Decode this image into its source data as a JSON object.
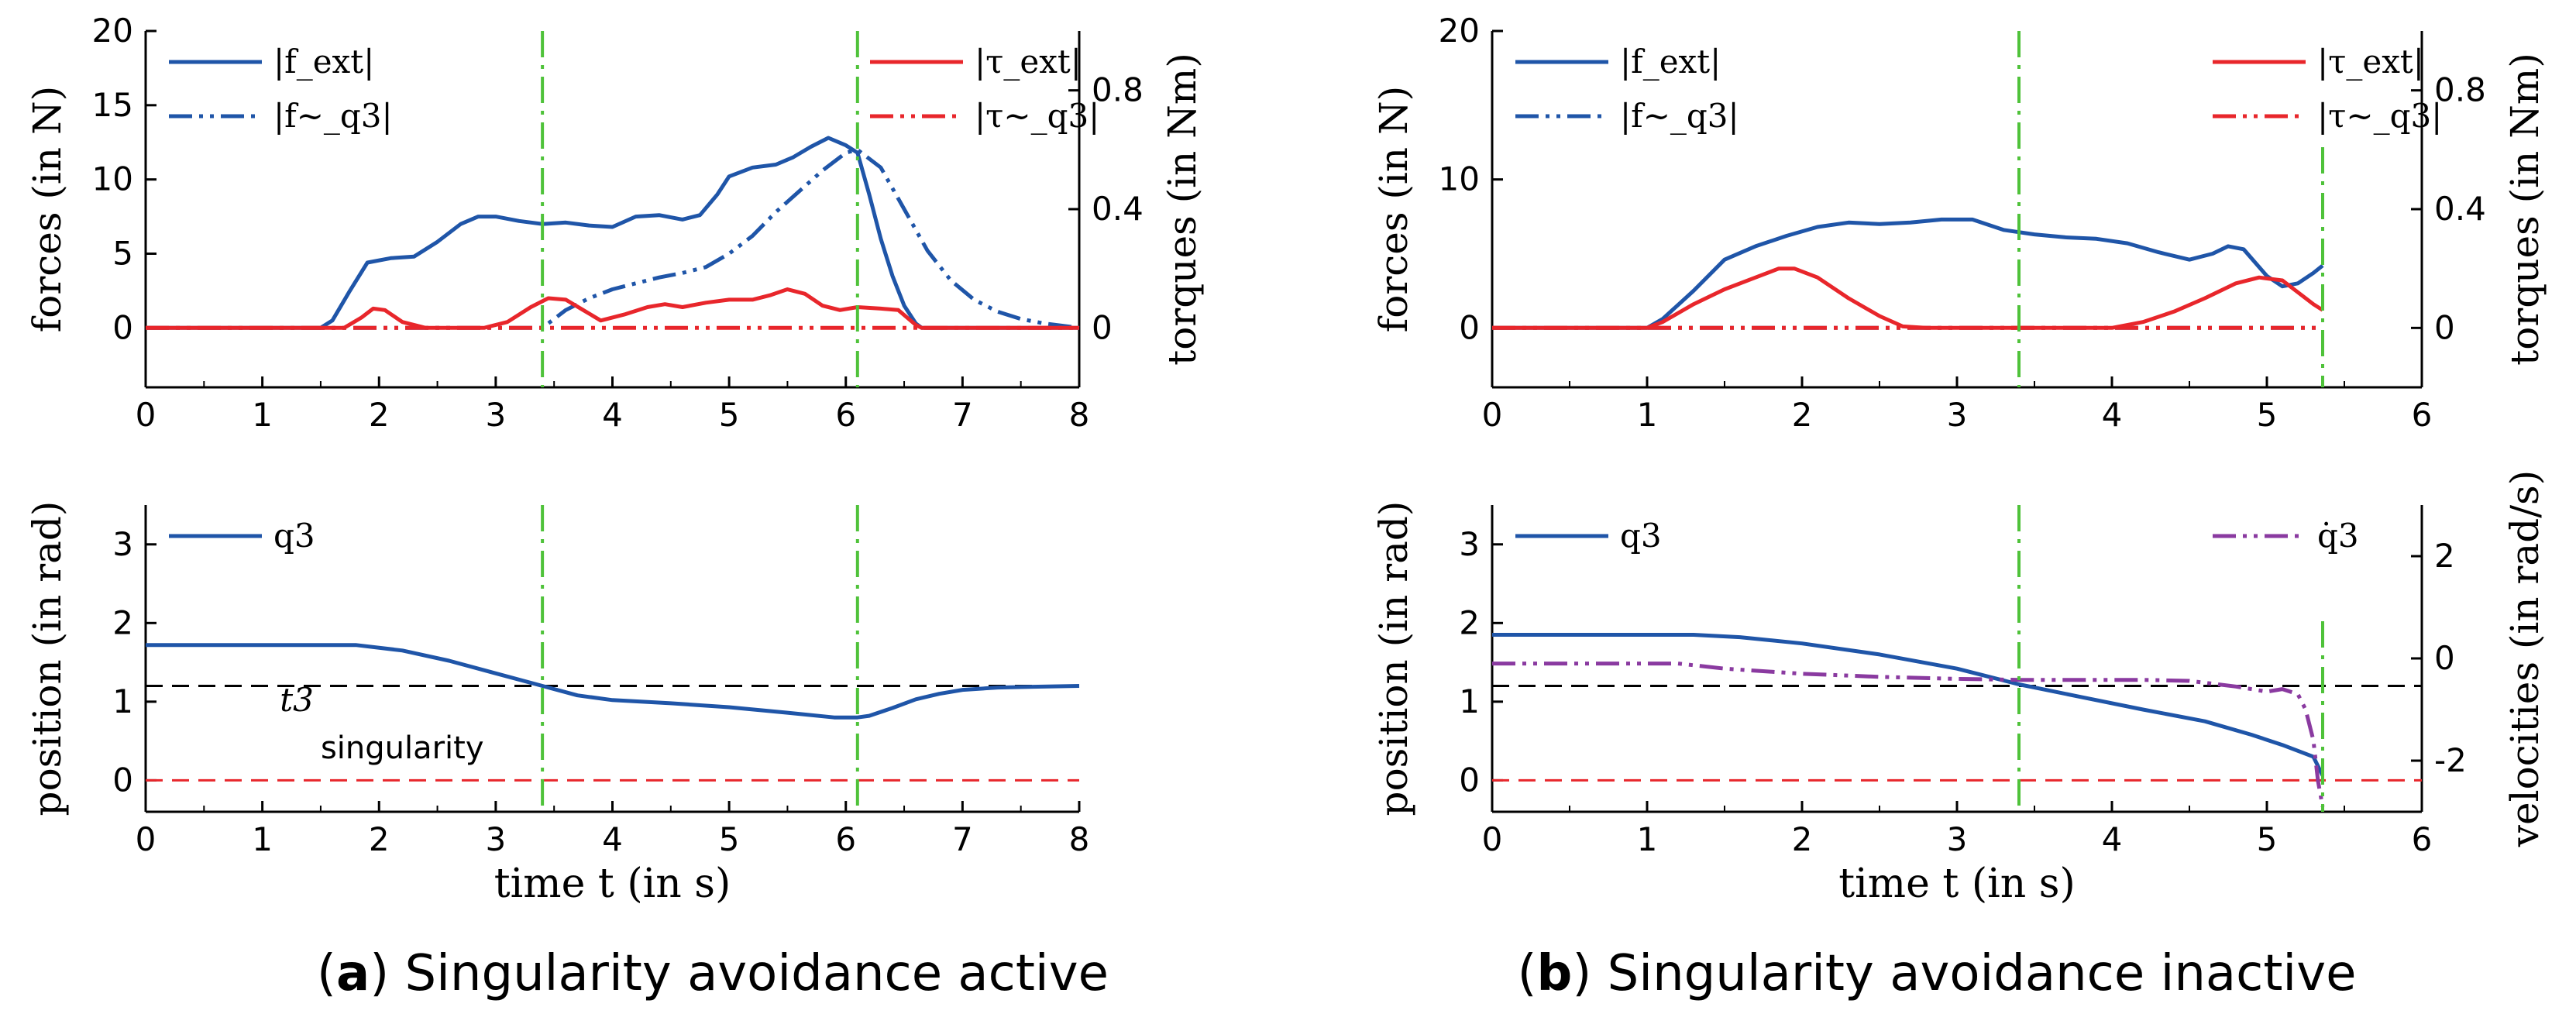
{
  "colors": {
    "blue": "#1f55a8",
    "red": "#e8262b",
    "green": "#4fc23a",
    "black": "#000000",
    "purple": "#8a3aa0"
  },
  "captions": [
    {
      "letter": "a",
      "text": "Singularity avoidance active"
    },
    {
      "letter": "b",
      "text": "Singularity avoidance inactive"
    }
  ],
  "chart_data": [
    {
      "id": "a-forces",
      "type": "line",
      "ylabel": "forces (in N)",
      "ylabel_right": "torques (in Nm)",
      "xlim": [
        0,
        8
      ],
      "xticks": [
        0,
        1,
        2,
        3,
        4,
        5,
        6,
        7,
        8
      ],
      "ylim": [
        -4,
        20
      ],
      "yticks": [
        0,
        5,
        10,
        15,
        20
      ],
      "ylim_right": [
        -0.2,
        1.0
      ],
      "yticks_right": [
        0,
        0.4,
        0.8
      ],
      "vlines": [
        3.4,
        6.1
      ],
      "legend_left": [
        "|f_ext|",
        "|f~_q3|"
      ],
      "legend_right": [
        "|τ_ext|",
        "|τ~_q3|"
      ],
      "series": [
        {
          "name": "|f_ext|",
          "axis": "left",
          "style": "solid",
          "color": "blue",
          "x": [
            0,
            1.5,
            1.6,
            1.75,
            1.9,
            2.1,
            2.3,
            2.5,
            2.7,
            2.85,
            3.0,
            3.2,
            3.4,
            3.6,
            3.8,
            4.0,
            4.2,
            4.4,
            4.6,
            4.75,
            4.9,
            5.0,
            5.2,
            5.4,
            5.55,
            5.7,
            5.85,
            6.0,
            6.1,
            6.2,
            6.3,
            6.4,
            6.5,
            6.6,
            6.65,
            8
          ],
          "y": [
            0,
            0,
            0.5,
            2.5,
            4.4,
            4.7,
            4.8,
            5.8,
            7.0,
            7.5,
            7.5,
            7.2,
            7.0,
            7.1,
            6.9,
            6.8,
            7.5,
            7.6,
            7.3,
            7.6,
            9.0,
            10.2,
            10.8,
            11.0,
            11.5,
            12.2,
            12.8,
            12.3,
            11.8,
            9.0,
            6.0,
            3.5,
            1.5,
            0.3,
            0,
            0
          ]
        },
        {
          "name": "|f~_q3|",
          "axis": "left",
          "style": "dashdotdot",
          "color": "blue",
          "x": [
            0,
            3.4,
            3.6,
            3.8,
            4.0,
            4.2,
            4.4,
            4.6,
            4.8,
            5.0,
            5.2,
            5.4,
            5.6,
            5.8,
            6.0,
            6.1,
            6.3,
            6.5,
            6.7,
            6.9,
            7.1,
            7.3,
            7.5,
            7.7,
            7.9,
            8
          ],
          "y": [
            0,
            0,
            1.2,
            2.0,
            2.6,
            3.0,
            3.4,
            3.7,
            4.1,
            5.0,
            6.2,
            7.8,
            9.2,
            10.6,
            11.8,
            12.0,
            10.8,
            8.0,
            5.2,
            3.2,
            1.9,
            1.1,
            0.6,
            0.3,
            0.1,
            0
          ]
        },
        {
          "name": "|τ_ext|",
          "axis": "right",
          "style": "solid",
          "color": "red",
          "x": [
            0,
            1.7,
            1.85,
            1.95,
            2.05,
            2.2,
            2.4,
            2.9,
            3.1,
            3.3,
            3.45,
            3.6,
            3.75,
            3.9,
            4.1,
            4.3,
            4.45,
            4.6,
            4.8,
            5.0,
            5.2,
            5.35,
            5.5,
            5.65,
            5.8,
            5.95,
            6.1,
            6.3,
            6.45,
            6.6,
            6.65,
            8
          ],
          "y": [
            0,
            0,
            0.035,
            0.065,
            0.06,
            0.02,
            0,
            0,
            0.02,
            0.07,
            0.1,
            0.095,
            0.06,
            0.025,
            0.045,
            0.07,
            0.08,
            0.07,
            0.085,
            0.095,
            0.095,
            0.11,
            0.13,
            0.115,
            0.075,
            0.06,
            0.07,
            0.065,
            0.06,
            0.01,
            0,
            0
          ]
        },
        {
          "name": "|τ~_q3|",
          "axis": "right",
          "style": "dashdotdot",
          "color": "red",
          "x": [
            0,
            8
          ],
          "y": [
            0,
            0
          ]
        }
      ]
    },
    {
      "id": "a-position",
      "type": "line",
      "ylabel": "position (in rad)",
      "xlabel": "time t (in s)",
      "xlim": [
        0,
        8
      ],
      "xticks": [
        0,
        1,
        2,
        3,
        4,
        5,
        6,
        7,
        8
      ],
      "ylim": [
        -0.4,
        3.5
      ],
      "yticks": [
        0,
        1,
        2,
        3
      ],
      "vlines": [
        3.4,
        6.1
      ],
      "hlines": [
        {
          "y": 1.2,
          "color": "black"
        },
        {
          "y": 0,
          "color": "red"
        }
      ],
      "annotations": [
        "t3",
        "singularity"
      ],
      "legend_left": [
        "q3"
      ],
      "series": [
        {
          "name": "q3",
          "axis": "left",
          "style": "solid",
          "color": "blue",
          "x": [
            0,
            1.8,
            2.2,
            2.6,
            3.0,
            3.4,
            3.7,
            4.0,
            4.5,
            5.0,
            5.5,
            5.9,
            6.1,
            6.2,
            6.4,
            6.6,
            6.8,
            7.0,
            7.3,
            7.6,
            8
          ],
          "y": [
            1.72,
            1.72,
            1.65,
            1.52,
            1.36,
            1.2,
            1.08,
            1.02,
            0.98,
            0.93,
            0.86,
            0.8,
            0.8,
            0.82,
            0.92,
            1.03,
            1.1,
            1.15,
            1.18,
            1.19,
            1.2
          ]
        }
      ]
    },
    {
      "id": "b-forces",
      "type": "line",
      "ylabel": "forces (in N)",
      "ylabel_right": "torques (in Nm)",
      "xlim": [
        0,
        6
      ],
      "xticks": [
        0,
        1,
        2,
        3,
        4,
        5,
        6
      ],
      "ylim": [
        -4,
        20
      ],
      "yticks": [
        0,
        10,
        20
      ],
      "ylim_right": [
        -0.2,
        1.0
      ],
      "yticks_right": [
        0,
        0.4,
        0.8
      ],
      "vlines": [
        3.4,
        5.36
      ],
      "legend_left": [
        "|f_ext|",
        "|f~_q3|"
      ],
      "legend_right": [
        "|τ_ext|",
        "|τ~_q3|"
      ],
      "series": [
        {
          "name": "|f_ext|",
          "axis": "left",
          "style": "solid",
          "color": "blue",
          "x": [
            0,
            1.0,
            1.1,
            1.3,
            1.5,
            1.7,
            1.9,
            2.1,
            2.3,
            2.5,
            2.7,
            2.9,
            3.1,
            3.3,
            3.5,
            3.7,
            3.9,
            4.1,
            4.3,
            4.5,
            4.65,
            4.75,
            4.85,
            5.0,
            5.1,
            5.2,
            5.3,
            5.36
          ],
          "y": [
            0,
            0,
            0.6,
            2.5,
            4.6,
            5.5,
            6.2,
            6.8,
            7.1,
            7.0,
            7.1,
            7.3,
            7.3,
            6.6,
            6.3,
            6.1,
            6.0,
            5.7,
            5.1,
            4.6,
            5.0,
            5.5,
            5.3,
            3.5,
            2.8,
            3.0,
            3.7,
            4.2
          ]
        },
        {
          "name": "|f~_q3|",
          "axis": "left",
          "style": "dashdotdot",
          "color": "blue",
          "x": [
            0,
            5.36
          ],
          "y": [
            0,
            0
          ]
        },
        {
          "name": "|τ_ext|",
          "axis": "right",
          "style": "solid",
          "color": "red",
          "x": [
            0,
            1.0,
            1.1,
            1.3,
            1.5,
            1.7,
            1.85,
            1.95,
            2.1,
            2.3,
            2.5,
            2.65,
            2.8,
            4.0,
            4.2,
            4.4,
            4.6,
            4.8,
            4.95,
            5.1,
            5.2,
            5.3,
            5.36
          ],
          "y": [
            0,
            0,
            0.02,
            0.08,
            0.13,
            0.17,
            0.2,
            0.2,
            0.17,
            0.1,
            0.04,
            0.005,
            0,
            0,
            0.02,
            0.055,
            0.1,
            0.15,
            0.17,
            0.16,
            0.12,
            0.08,
            0.06
          ]
        },
        {
          "name": "|τ~_q3|",
          "axis": "right",
          "style": "dashdotdot",
          "color": "red",
          "x": [
            0,
            5.36
          ],
          "y": [
            0,
            0
          ]
        }
      ]
    },
    {
      "id": "b-position",
      "type": "line",
      "ylabel": "position (in rad)",
      "ylabel_right": "velocities (in rad/s)",
      "xlabel": "time t (in s)",
      "xlim": [
        0,
        6
      ],
      "xticks": [
        0,
        1,
        2,
        3,
        4,
        5,
        6
      ],
      "ylim": [
        -0.4,
        3.5
      ],
      "yticks": [
        0,
        1,
        2,
        3
      ],
      "ylim_right": [
        -3.0,
        3.0
      ],
      "yticks_right": [
        -2,
        0,
        2
      ],
      "vlines": [
        3.4,
        5.36
      ],
      "hlines": [
        {
          "y": 1.2,
          "color": "black"
        },
        {
          "y": 0,
          "color": "red"
        }
      ],
      "legend_left": [
        "q3"
      ],
      "legend_right": [
        "q̇3"
      ],
      "series": [
        {
          "name": "q3",
          "axis": "left",
          "style": "solid",
          "color": "blue",
          "x": [
            0,
            1.3,
            1.6,
            2.0,
            2.5,
            3.0,
            3.4,
            3.8,
            4.2,
            4.6,
            4.9,
            5.1,
            5.3,
            5.36
          ],
          "y": [
            1.85,
            1.85,
            1.82,
            1.74,
            1.6,
            1.42,
            1.22,
            1.06,
            0.9,
            0.75,
            0.58,
            0.45,
            0.3,
            0.06
          ]
        },
        {
          "name": "q̇3",
          "axis": "right",
          "style": "dashdotdot",
          "color": "purple",
          "x": [
            0,
            1.2,
            1.5,
            2.0,
            2.5,
            3.0,
            3.4,
            3.8,
            4.2,
            4.5,
            4.8,
            5.0,
            5.1,
            5.2,
            5.25,
            5.3,
            5.33,
            5.36
          ],
          "y": [
            -0.1,
            -0.1,
            -0.2,
            -0.3,
            -0.36,
            -0.4,
            -0.42,
            -0.42,
            -0.42,
            -0.44,
            -0.55,
            -0.65,
            -0.6,
            -0.7,
            -1.0,
            -1.6,
            -2.4,
            -2.9
          ]
        }
      ]
    }
  ]
}
